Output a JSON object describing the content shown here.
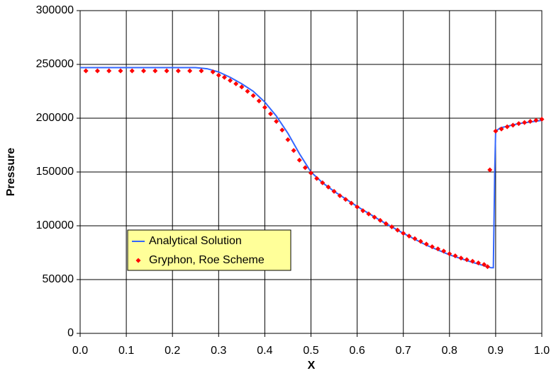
{
  "chart_data": {
    "type": "line",
    "x_label": "X",
    "y_label": "Pressure",
    "xlim": [
      0,
      1
    ],
    "ylim": [
      0,
      300000
    ],
    "xticks": [
      {
        "value": 0,
        "label": "0.0"
      },
      0.1,
      0.2,
      0.3,
      0.4,
      0.5,
      0.6,
      0.7,
      0.8,
      0.9,
      {
        "value": 1,
        "label": "1.0"
      }
    ],
    "yticks": [
      0,
      50000,
      100000,
      150000,
      200000,
      250000,
      300000
    ],
    "grid": true,
    "legend": "lower-left",
    "series": [
      {
        "name": "Analytical Solution",
        "color": "#3366ff",
        "style": "line",
        "x": [
          0,
          0.25,
          0.275,
          0.3,
          0.325,
          0.35,
          0.375,
          0.4,
          0.425,
          0.45,
          0.475,
          0.5,
          0.525,
          0.55,
          0.6,
          0.65,
          0.7,
          0.75,
          0.8,
          0.85,
          0.89,
          0.895,
          0.898,
          0.9,
          0.91,
          0.95,
          1.0
        ],
        "values": [
          247000,
          247000,
          246000,
          243000,
          238000,
          232000,
          225000,
          215000,
          202000,
          186000,
          167000,
          150000,
          140000,
          132000,
          118000,
          105000,
          93000,
          82000,
          73000,
          66000,
          61000,
          61000,
          150000,
          188000,
          191000,
          195000,
          198000
        ]
      },
      {
        "name": "Gryphon, Roe Scheme",
        "color": "#ff0000",
        "style": "markers",
        "x": [
          0.0125,
          0.0375,
          0.0625,
          0.0875,
          0.1125,
          0.1375,
          0.1625,
          0.1875,
          0.2125,
          0.2375,
          0.2625,
          0.2875,
          0.3,
          0.3125,
          0.325,
          0.3375,
          0.35,
          0.3625,
          0.375,
          0.3875,
          0.4,
          0.4125,
          0.425,
          0.4375,
          0.45,
          0.4625,
          0.475,
          0.4875,
          0.5,
          0.5125,
          0.525,
          0.5375,
          0.55,
          0.5625,
          0.575,
          0.5875,
          0.6,
          0.6125,
          0.625,
          0.6375,
          0.65,
          0.6625,
          0.675,
          0.6875,
          0.7,
          0.7125,
          0.725,
          0.7375,
          0.75,
          0.7625,
          0.775,
          0.7875,
          0.8,
          0.8125,
          0.825,
          0.8375,
          0.85,
          0.8625,
          0.875,
          0.8825,
          0.8875,
          0.9,
          0.9125,
          0.925,
          0.9375,
          0.95,
          0.9625,
          0.975,
          0.9875,
          1.0
        ],
        "values": [
          244000,
          244000,
          244000,
          244000,
          244000,
          244000,
          244000,
          244000,
          244000,
          244000,
          244000,
          243000,
          240000,
          238000,
          235000,
          232000,
          229000,
          225000,
          221000,
          216000,
          210000,
          204000,
          197000,
          189000,
          180000,
          170000,
          161000,
          154000,
          149000,
          144000,
          140000,
          136000,
          132000,
          128000,
          124500,
          121000,
          117500,
          114000,
          111000,
          108000,
          105000,
          102000,
          99000,
          96000,
          93000,
          90500,
          88000,
          85500,
          83000,
          80500,
          78500,
          76500,
          74000,
          72000,
          70000,
          68500,
          67000,
          65500,
          64000,
          62000,
          152000,
          188000,
          190000,
          192000,
          193500,
          195000,
          196000,
          197000,
          198000,
          199000
        ]
      }
    ]
  }
}
